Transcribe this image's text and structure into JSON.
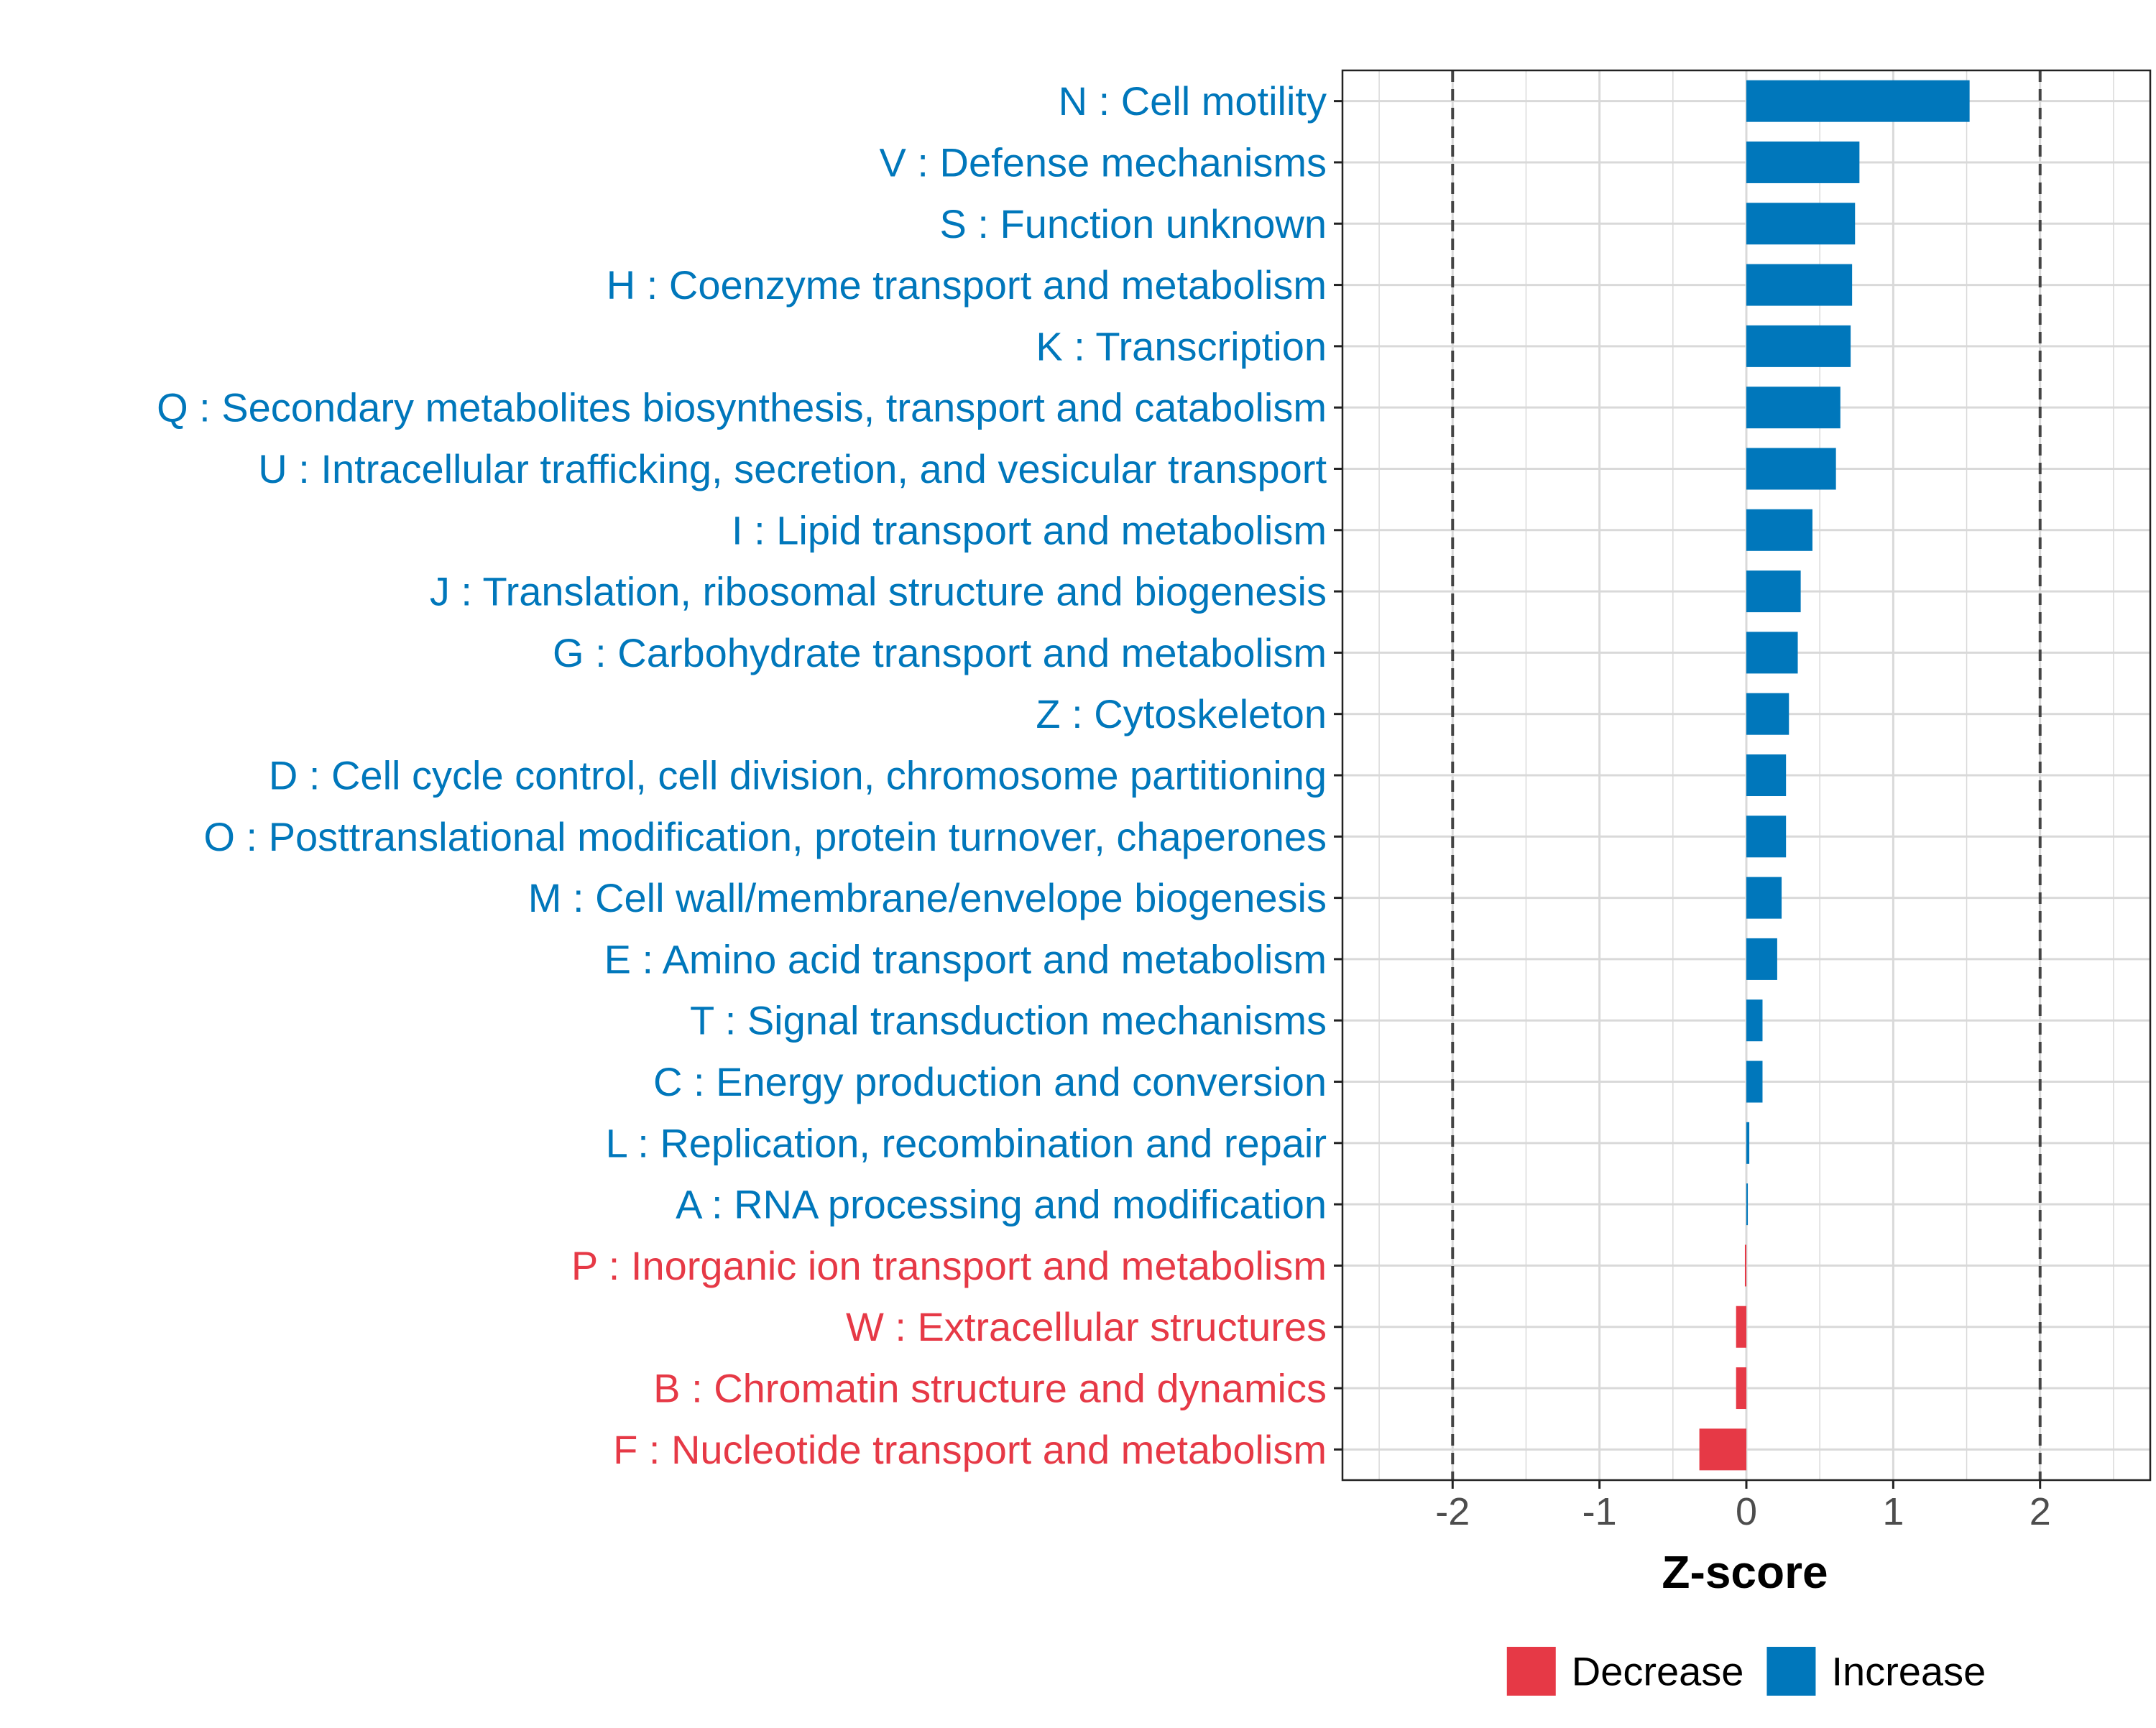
{
  "colors": {
    "increase": "#0077BB",
    "decrease": "#E63946",
    "grid": "#d9d9d9",
    "axis": "#222222",
    "tick_text": "#4d4d4d",
    "threshold": "#444444"
  },
  "chart_data": {
    "type": "bar",
    "orientation": "horizontal",
    "title": "",
    "xlabel": "Z-score",
    "ylabel": "",
    "xlim": [
      -2.75,
      2.75
    ],
    "xticks": [
      -2,
      -1,
      0,
      1,
      2
    ],
    "xtick_labels": [
      "-2",
      "-1",
      "0",
      "1",
      "2"
    ],
    "threshold_lines": [
      -2,
      2
    ],
    "grid": true,
    "legend": {
      "placement": "bottom",
      "entries": [
        {
          "label": "Decrease",
          "color": "#E63946"
        },
        {
          "label": "Increase",
          "color": "#0077BB"
        }
      ]
    },
    "categories": [
      "N : Cell motility",
      "V : Defense mechanisms",
      "S : Function unknown",
      "H : Coenzyme transport and metabolism",
      "K : Transcription",
      "Q : Secondary metabolites biosynthesis, transport and catabolism",
      "U : Intracellular trafficking, secretion, and vesicular transport",
      "I : Lipid transport and metabolism",
      "J : Translation, ribosomal structure and biogenesis",
      "G : Carbohydrate transport and metabolism",
      "Z : Cytoskeleton",
      "D : Cell cycle control, cell division, chromosome partitioning",
      "O : Posttranslational modification, protein turnover, chaperones",
      "M : Cell wall/membrane/envelope biogenesis",
      "E : Amino acid transport and metabolism",
      "T : Signal transduction mechanisms",
      "C : Energy production and conversion",
      "L : Replication, recombination and repair",
      "A : RNA processing and modification",
      "P : Inorganic ion transport and metabolism",
      "W : Extracellular structures",
      "B : Chromatin structure and dynamics",
      "F : Nucleotide transport and metabolism"
    ],
    "values": [
      1.52,
      0.77,
      0.74,
      0.72,
      0.71,
      0.64,
      0.61,
      0.45,
      0.37,
      0.35,
      0.29,
      0.27,
      0.27,
      0.24,
      0.21,
      0.11,
      0.11,
      0.02,
      0.01,
      -0.01,
      -0.07,
      -0.07,
      -0.32
    ],
    "direction": [
      "Increase",
      "Increase",
      "Increase",
      "Increase",
      "Increase",
      "Increase",
      "Increase",
      "Increase",
      "Increase",
      "Increase",
      "Increase",
      "Increase",
      "Increase",
      "Increase",
      "Increase",
      "Increase",
      "Increase",
      "Increase",
      "Increase",
      "Decrease",
      "Decrease",
      "Decrease",
      "Decrease"
    ]
  }
}
